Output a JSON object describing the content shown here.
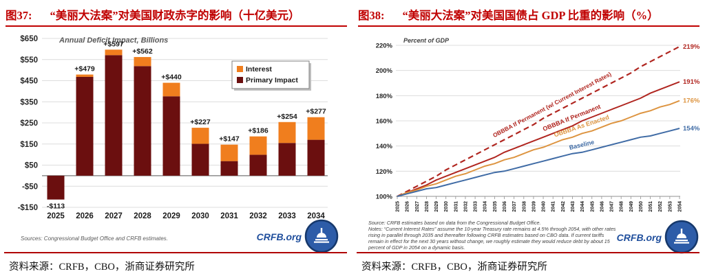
{
  "page": {
    "background": "#FFFFFF",
    "accent_red": "#C00000"
  },
  "left_panel": {
    "figure_label": "图37:",
    "title": "“美丽大法案”对美国财政赤字的影响（十亿美元）",
    "caption": "资料来源：CRFB，CBO，浙商证券研究所"
  },
  "right_panel": {
    "figure_label": "图38:",
    "title": "“美丽大法案”对美国国债占 GDP 比重的影响（%）",
    "caption": "资料来源：CRFB，CBO，浙商证券研究所"
  },
  "chart_data": [
    {
      "type": "bar",
      "stacked": true,
      "title": "Annual Deficit Impact, Billions",
      "categories": [
        "2025",
        "2026",
        "2027",
        "2028",
        "2029",
        "2030",
        "2031",
        "2032",
        "2033",
        "2034"
      ],
      "series": [
        {
          "name": "Primary Impact",
          "color": "#6B0F0F",
          "values": [
            -113,
            468,
            571,
            519,
            376,
            151,
            69,
            99,
            155,
            170
          ]
        },
        {
          "name": "Interest",
          "color": "#F07E1E",
          "values": [
            0,
            11,
            26,
            43,
            64,
            76,
            78,
            87,
            99,
            107
          ]
        }
      ],
      "total_labels": [
        "-$113",
        "+$479",
        "+$597",
        "+$562",
        "+$440",
        "+$227",
        "+$147",
        "+$186",
        "+$254",
        "+$277"
      ],
      "legend": [
        {
          "label": "Interest",
          "color": "#F07E1E"
        },
        {
          "label": "Primary Impact",
          "color": "#6B0F0F"
        }
      ],
      "ylim": [
        -150,
        650
      ],
      "ytick_step": 100,
      "ytick_labels": [
        "$650",
        "$550",
        "$450",
        "$350",
        "$250",
        "$150",
        "$50",
        "-$50",
        "-$150"
      ],
      "grid": true,
      "source": "Sources: Congressional Budget Office and CRFB estimates.",
      "logo_text": "CRFB.org"
    },
    {
      "type": "line",
      "title": "Percent of GDP",
      "x": [
        2025,
        2026,
        2027,
        2028,
        2029,
        2030,
        2031,
        2032,
        2033,
        2034,
        2035,
        2036,
        2037,
        2038,
        2039,
        2040,
        2041,
        2042,
        2043,
        2044,
        2045,
        2046,
        2047,
        2048,
        2049,
        2050,
        2051,
        2052,
        2053,
        2054
      ],
      "series": [
        {
          "name": "OBBBA If Permanent (w/ Current Interest Rates)",
          "style": "dashed",
          "color": "#B0251F",
          "end_label": "219%",
          "values": [
            100,
            104,
            108,
            112,
            116,
            121,
            125,
            129,
            133,
            137,
            141,
            145,
            149,
            153,
            157,
            162,
            166,
            170,
            174,
            178,
            182,
            186,
            190,
            194,
            198,
            203,
            207,
            211,
            215,
            219
          ]
        },
        {
          "name": "OBBBA If Permanent",
          "style": "solid",
          "color": "#B0251F",
          "end_label": "191%",
          "values": [
            100,
            103,
            106,
            109,
            113,
            116,
            119,
            122,
            125,
            128,
            131,
            135,
            138,
            141,
            144,
            147,
            150,
            153,
            156,
            160,
            163,
            166,
            169,
            172,
            175,
            178,
            182,
            185,
            188,
            191
          ]
        },
        {
          "name": "OBBBA As Enacted",
          "style": "solid",
          "color": "#DD9440",
          "end_label": "176%",
          "values": [
            100,
            103,
            105,
            108,
            110,
            113,
            116,
            118,
            121,
            124,
            126,
            129,
            131,
            134,
            137,
            139,
            142,
            145,
            147,
            150,
            152,
            155,
            158,
            160,
            163,
            166,
            168,
            171,
            173,
            176
          ]
        },
        {
          "name": "Baseline",
          "style": "solid",
          "color": "#3F6BA5",
          "end_label": "154%",
          "values": [
            100,
            102,
            104,
            106,
            107,
            109,
            111,
            113,
            115,
            117,
            119,
            120,
            122,
            124,
            126,
            128,
            130,
            132,
            134,
            135,
            137,
            139,
            141,
            143,
            145,
            147,
            148,
            150,
            152,
            154
          ]
        }
      ],
      "ylim": [
        100,
        220
      ],
      "ytick_labels": [
        "220%",
        "200%",
        "180%",
        "160%",
        "140%",
        "120%",
        "100%"
      ],
      "grid": true,
      "legend_position": "inline-labels",
      "source": "Source: CRFB estimates based on data from the Congressional Budget Office.",
      "notes_lines": [
        "Notes: “Current Interest Rates” assume the 10-year Treasury rate remains at 4.5% through 2054, with other rates",
        "rising in parallel through 2035 and thereafter following CRFB estimates based on CBO data. If current tariffs",
        "remain in effect for the next 30 years without change, we roughly estimate they would reduce debt by about 15",
        "percent of GDP in 2054 on a dynamic basis."
      ],
      "logo_text": "CRFB.org"
    }
  ]
}
